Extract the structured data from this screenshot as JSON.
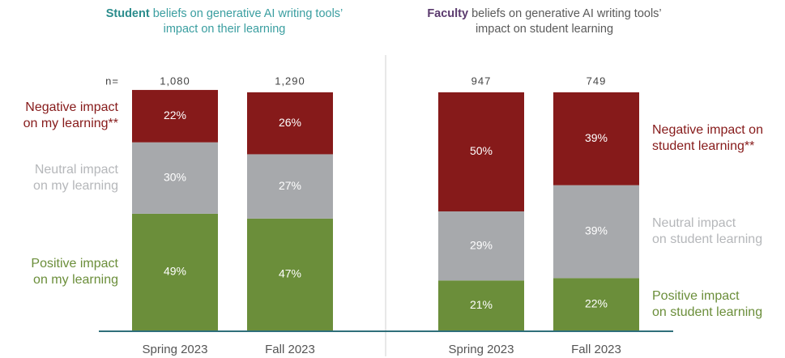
{
  "chart_data": [
    {
      "type": "stacked_bar",
      "title_lead": "Student",
      "title": "beliefs on generative AI writing tools’ impact on their learning",
      "n_label": "n=",
      "n": [
        {
          "value": 1080,
          "label": "1,080"
        },
        {
          "value": 1290,
          "label": "1,290"
        }
      ],
      "categories": [
        "Spring 2023",
        "Fall 2023"
      ],
      "ylim": [
        0,
        100
      ],
      "series": [
        {
          "name": "Positive impact\non my learning",
          "color": "#6b8e3a",
          "text_color": "#6b8e3a",
          "values": [
            49,
            47
          ],
          "value_labels": [
            "49%",
            "47%"
          ]
        },
        {
          "name": "Neutral impact\non my learning",
          "color": "#a7a9ac",
          "text_color": "#b5b7ba",
          "values": [
            30,
            27
          ],
          "value_labels": [
            "30%",
            "27%"
          ]
        },
        {
          "name": "Negative impact\non my learning**",
          "color": "#861a1a",
          "text_color": "#861a1a",
          "values": [
            22,
            26
          ],
          "value_labels": [
            "22%",
            "26%"
          ]
        }
      ]
    },
    {
      "type": "stacked_bar",
      "title_lead": "Faculty",
      "title": "beliefs on generative AI writing tools’ impact on student learning",
      "n": [
        {
          "value": 947,
          "label": "947"
        },
        {
          "value": 749,
          "label": "749"
        }
      ],
      "categories": [
        "Spring 2023",
        "Fall 2023"
      ],
      "ylim": [
        0,
        100
      ],
      "series": [
        {
          "name": "Positive impact\non student learning",
          "color": "#6b8e3a",
          "text_color": "#6b8e3a",
          "values": [
            21,
            22
          ],
          "value_labels": [
            "21%",
            "22%"
          ]
        },
        {
          "name": "Neutral impact\non student learning",
          "color": "#a7a9ac",
          "text_color": "#b5b7ba",
          "values": [
            29,
            39
          ],
          "value_labels": [
            "29%",
            "39%"
          ]
        },
        {
          "name": "Negative impact on\nstudent learning**",
          "color": "#861a1a",
          "text_color": "#861a1a",
          "values": [
            50,
            39
          ],
          "value_labels": [
            "50%",
            "39%"
          ]
        }
      ]
    }
  ]
}
